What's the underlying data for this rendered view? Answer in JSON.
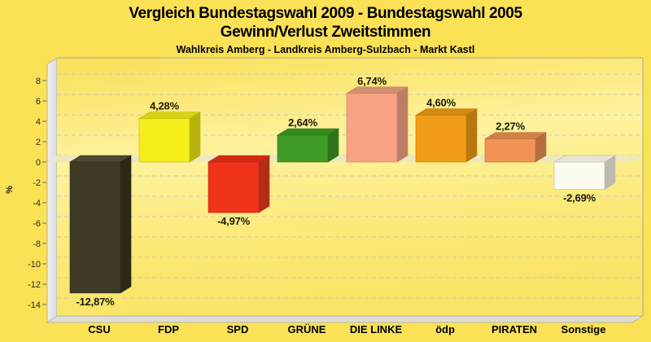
{
  "header": {
    "title_line1": "Vergleich Bundestagswahl 2009 - Bundestagswahl 2005",
    "title_line2": "Gewinn/Verlust Zweitstimmen",
    "subtitle": "Wahlkreis Amberg - Landkreis Amberg-Sulzbach - Markt Kastl"
  },
  "chart_data": {
    "type": "bar",
    "style": "3d",
    "title": "Vergleich Bundestagswahl 2009 - Bundestagswahl 2005 Gewinn/Verlust Zweitstimmen",
    "subtitle": "Wahlkreis Amberg - Landkreis Amberg-Sulzbach - Markt Kastl",
    "categories": [
      "CSU",
      "FDP",
      "SPD",
      "GRÜNE",
      "DIE LINKE",
      "ödp",
      "PIRATEN",
      "Sonstige"
    ],
    "values": [
      -12.87,
      4.28,
      -4.97,
      2.64,
      6.74,
      4.6,
      2.27,
      -2.69
    ],
    "value_labels": [
      "-12,87%",
      "4,28%",
      "-4,97%",
      "2,64%",
      "6,74%",
      "4,60%",
      "2,27%",
      "-2,69%"
    ],
    "bar_colors": [
      {
        "front": "#3F3A25",
        "side": "#2D2917",
        "top": "#4D4831"
      },
      {
        "front": "#F4EF1A",
        "side": "#B7B30A",
        "top": "#D8D414"
      },
      {
        "front": "#F0331A",
        "side": "#B52C15",
        "top": "#D12C13"
      },
      {
        "front": "#3E9B25",
        "side": "#2E7418",
        "top": "#358A1D"
      },
      {
        "front": "#F9A183",
        "side": "#BE7E66",
        "top": "#D28D72"
      },
      {
        "front": "#F29D18",
        "side": "#B9780E",
        "top": "#D58A12"
      },
      {
        "front": "#F09355",
        "side": "#B56E3C",
        "top": "#D28147"
      },
      {
        "front": "#FCFBEF",
        "side": "#BBBAAE",
        "top": "#E7E4D1"
      }
    ],
    "xlabel": "",
    "ylabel": "%",
    "ylim": [
      -14,
      8
    ],
    "ytick_step": 2,
    "yticks": [
      "8",
      "6",
      "4",
      "2",
      "0",
      "-2",
      "-4",
      "-6",
      "-8",
      "-10",
      "-12",
      "-14"
    ],
    "grid": "dashed horizontal",
    "legend": "none"
  },
  "colors": {
    "page_bg": "#FBE156",
    "plot_gradient": [
      [
        "0%",
        "#F9E058"
      ],
      [
        "40%",
        "#FEF29E"
      ],
      [
        "75%",
        "#FBE976"
      ],
      [
        "100%",
        "#F9E466"
      ]
    ],
    "wall": "#DBDBDB",
    "wall_edge": "#9E9E96",
    "wall_highlight": "#F0F0EE",
    "floor": "#DEDED6",
    "floor_edge": "#ABABA0",
    "zero_plane": "#ECE8C3",
    "gridline": "#CCCABE",
    "border": "#A9A79B",
    "tick": "#6B6B5E",
    "axis_text": "#2B2B1B",
    "value_text": "#1C1A05",
    "category_text": "#000000",
    "title_text": "#000000"
  }
}
